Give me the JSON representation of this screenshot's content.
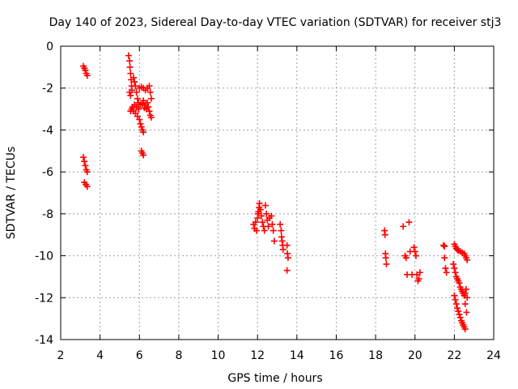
{
  "chart_data": {
    "type": "scatter",
    "title": "Day 140 of 2023, Sidereal Day-to-day VTEC variation (SDTVAR) for receiver stj3",
    "xlabel": "GPS time / hours",
    "ylabel": "SDTVAR / TECUs",
    "xlim": [
      2,
      24
    ],
    "ylim": [
      -14,
      0
    ],
    "xticks": [
      "2",
      "4",
      "6",
      "8",
      "10",
      "12",
      "14",
      "16",
      "18",
      "20",
      "22",
      "24"
    ],
    "yticks": [
      "0",
      "-2",
      "-4",
      "-6",
      "-8",
      "-10",
      "-12",
      "-14"
    ],
    "grid": true,
    "marker": "+",
    "color": "#ff0000",
    "series": [
      {
        "name": "stj3",
        "points": [
          [
            3.15,
            -0.95
          ],
          [
            3.2,
            -1.05
          ],
          [
            3.25,
            -1.15
          ],
          [
            3.3,
            -1.3
          ],
          [
            3.35,
            -1.4
          ],
          [
            3.15,
            -5.3
          ],
          [
            3.2,
            -5.5
          ],
          [
            3.25,
            -5.7
          ],
          [
            3.3,
            -5.9
          ],
          [
            3.35,
            -6.0
          ],
          [
            3.2,
            -6.5
          ],
          [
            3.28,
            -6.6
          ],
          [
            3.35,
            -6.7
          ],
          [
            5.45,
            -0.45
          ],
          [
            5.5,
            -0.7
          ],
          [
            5.52,
            -1.0
          ],
          [
            5.55,
            -1.3
          ],
          [
            5.58,
            -1.6
          ],
          [
            5.6,
            -1.9
          ],
          [
            5.62,
            -2.1
          ],
          [
            5.5,
            -2.2
          ],
          [
            5.55,
            -2.35
          ],
          [
            5.7,
            -1.5
          ],
          [
            5.75,
            -1.7
          ],
          [
            5.8,
            -1.9
          ],
          [
            5.85,
            -2.2
          ],
          [
            5.9,
            -2.5
          ],
          [
            5.95,
            -2.7
          ],
          [
            5.65,
            -2.9
          ],
          [
            5.6,
            -3.0
          ],
          [
            5.55,
            -3.1
          ],
          [
            5.7,
            -3.1
          ],
          [
            5.8,
            -3.2
          ],
          [
            5.9,
            -3.35
          ],
          [
            6.0,
            -3.5
          ],
          [
            6.05,
            -3.7
          ],
          [
            6.1,
            -3.85
          ],
          [
            6.15,
            -4.0
          ],
          [
            6.2,
            -4.1
          ],
          [
            6.1,
            -5.0
          ],
          [
            6.15,
            -5.1
          ],
          [
            6.2,
            -5.2
          ],
          [
            6.0,
            -2.0
          ],
          [
            6.1,
            -1.95
          ],
          [
            6.2,
            -2.0
          ],
          [
            6.3,
            -2.1
          ],
          [
            6.4,
            -2.0
          ],
          [
            6.5,
            -1.9
          ],
          [
            6.55,
            -2.2
          ],
          [
            6.6,
            -2.5
          ],
          [
            6.2,
            -2.6
          ],
          [
            6.3,
            -2.8
          ],
          [
            6.35,
            -3.0
          ],
          [
            6.4,
            -2.7
          ],
          [
            6.45,
            -2.9
          ],
          [
            6.5,
            -3.1
          ],
          [
            6.55,
            -3.3
          ],
          [
            6.6,
            -3.4
          ],
          [
            6.15,
            -2.75
          ],
          [
            6.25,
            -2.95
          ],
          [
            6.05,
            -2.8
          ],
          [
            5.95,
            -3.0
          ],
          [
            5.85,
            -2.9
          ],
          [
            5.75,
            -2.8
          ],
          [
            11.8,
            -8.5
          ],
          [
            11.85,
            -8.7
          ],
          [
            11.9,
            -8.4
          ],
          [
            11.95,
            -8.8
          ],
          [
            12.0,
            -8.2
          ],
          [
            12.02,
            -8.0
          ],
          [
            12.05,
            -7.9
          ],
          [
            12.08,
            -7.7
          ],
          [
            12.1,
            -7.5
          ],
          [
            12.15,
            -7.8
          ],
          [
            12.2,
            -8.1
          ],
          [
            12.25,
            -8.4
          ],
          [
            12.3,
            -8.6
          ],
          [
            12.35,
            -8.8
          ],
          [
            12.4,
            -7.6
          ],
          [
            12.45,
            -8.0
          ],
          [
            12.5,
            -8.3
          ],
          [
            12.55,
            -8.6
          ],
          [
            12.6,
            -8.2
          ],
          [
            12.7,
            -8.1
          ],
          [
            12.75,
            -8.5
          ],
          [
            12.8,
            -8.8
          ],
          [
            12.85,
            -9.3
          ],
          [
            13.15,
            -8.5
          ],
          [
            13.2,
            -8.8
          ],
          [
            13.22,
            -9.1
          ],
          [
            13.25,
            -9.3
          ],
          [
            13.28,
            -9.5
          ],
          [
            13.3,
            -9.7
          ],
          [
            13.5,
            -9.5
          ],
          [
            13.52,
            -9.9
          ],
          [
            13.55,
            -10.1
          ],
          [
            13.5,
            -10.7
          ],
          [
            18.45,
            -8.8
          ],
          [
            18.48,
            -9.0
          ],
          [
            18.5,
            -9.9
          ],
          [
            18.52,
            -10.1
          ],
          [
            18.55,
            -10.4
          ],
          [
            19.4,
            -8.6
          ],
          [
            19.5,
            -10.0
          ],
          [
            19.55,
            -10.1
          ],
          [
            19.6,
            -10.9
          ],
          [
            19.7,
            -8.4
          ],
          [
            19.75,
            -9.8
          ],
          [
            19.85,
            -10.9
          ],
          [
            19.95,
            -9.6
          ],
          [
            20.0,
            -9.8
          ],
          [
            20.05,
            -10.0
          ],
          [
            20.1,
            -10.9
          ],
          [
            20.15,
            -11.2
          ],
          [
            20.2,
            -11.1
          ],
          [
            20.25,
            -10.8
          ],
          [
            21.45,
            -9.5
          ],
          [
            21.5,
            -9.55
          ],
          [
            21.5,
            -10.1
          ],
          [
            21.55,
            -10.6
          ],
          [
            21.6,
            -10.8
          ],
          [
            22.0,
            -9.45
          ],
          [
            22.05,
            -9.55
          ],
          [
            22.1,
            -9.65
          ],
          [
            22.15,
            -9.7
          ],
          [
            22.2,
            -9.75
          ],
          [
            22.3,
            -9.8
          ],
          [
            22.4,
            -9.85
          ],
          [
            22.5,
            -9.9
          ],
          [
            22.55,
            -10.0
          ],
          [
            22.6,
            -10.1
          ],
          [
            22.65,
            -10.2
          ],
          [
            21.95,
            -10.4
          ],
          [
            22.0,
            -10.6
          ],
          [
            22.05,
            -10.8
          ],
          [
            22.1,
            -11.0
          ],
          [
            22.15,
            -11.1
          ],
          [
            22.2,
            -11.2
          ],
          [
            22.25,
            -11.3
          ],
          [
            22.3,
            -11.5
          ],
          [
            22.35,
            -11.6
          ],
          [
            22.4,
            -11.7
          ],
          [
            22.45,
            -11.8
          ],
          [
            22.5,
            -11.9
          ],
          [
            22.55,
            -11.8
          ],
          [
            22.6,
            -11.6
          ],
          [
            22.65,
            -12.0
          ],
          [
            22.55,
            -12.3
          ],
          [
            22.62,
            -12.7
          ],
          [
            22.0,
            -11.9
          ],
          [
            22.05,
            -12.1
          ],
          [
            22.1,
            -12.3
          ],
          [
            22.15,
            -12.5
          ],
          [
            22.2,
            -12.65
          ],
          [
            22.25,
            -12.8
          ],
          [
            22.3,
            -12.95
          ],
          [
            22.35,
            -13.1
          ],
          [
            22.4,
            -13.2
          ],
          [
            22.45,
            -13.3
          ],
          [
            22.5,
            -13.4
          ],
          [
            22.55,
            -13.5
          ]
        ]
      }
    ]
  }
}
